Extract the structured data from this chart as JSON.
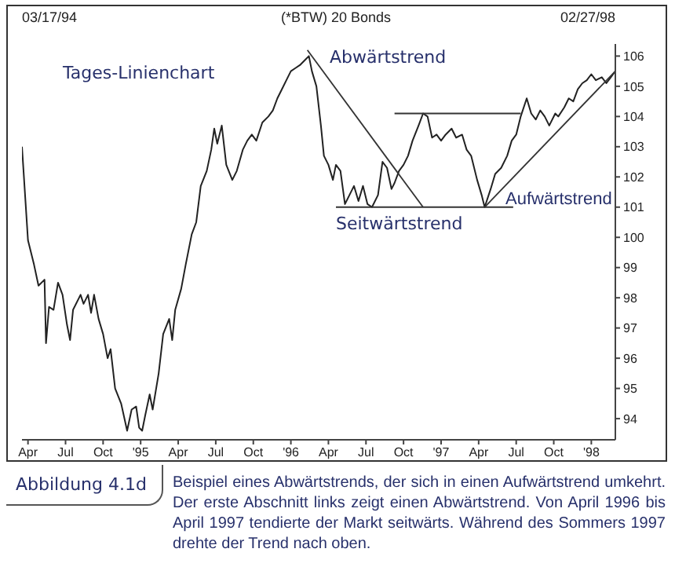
{
  "chart_data": {
    "type": "line",
    "title": "(*BTW) 20 Bonds",
    "annotations": [
      "03/17/94",
      "02/27/98",
      "Tages-Linienchart",
      "Abbildung 4.1d",
      "Beispiel eines Abwärtstrends, der sich in einen Aufwärtstrend umkehrt. Der erste Abschnitt links zeigt einen Abwärtstrend. Von April 1996 bis April 1997 tendierte der Markt seitwärts. Während des Sommers 1997 drehte der Trend nach oben.",
      "Abwärtstrend",
      "Seitwärtstrend",
      "Aufwärtstrend"
    ],
    "series": [
      {
        "color": "#222222",
        "x": [
          1994.21,
          1994.25,
          1994.29,
          1994.32,
          1994.36,
          1994.37,
          1994.39,
          1994.42,
          1994.45,
          1994.48,
          1994.51,
          1994.53,
          1994.55,
          1994.6,
          1994.62,
          1994.65,
          1994.67,
          1994.69,
          1994.72,
          1994.75,
          1994.78,
          1994.8,
          1994.83,
          1994.87,
          1994.91,
          1994.94,
          1994.97,
          1994.99,
          1995.01,
          1995.03,
          1995.06,
          1995.08,
          1995.12,
          1995.15,
          1995.19,
          1995.21,
          1995.23,
          1995.27,
          1995.3,
          1995.34,
          1995.37,
          1995.4,
          1995.44,
          1995.47,
          1995.49,
          1995.51,
          1995.54,
          1995.57,
          1995.61,
          1995.64,
          1995.68,
          1995.71,
          1995.74,
          1995.77,
          1995.81,
          1995.85,
          1995.88,
          1995.91,
          1995.94,
          1995.97,
          1996.0,
          1996.03,
          1996.06,
          1996.1,
          1996.12,
          1996.14,
          1996.17,
          1996.2,
          1996.22,
          1996.25,
          1996.28,
          1996.3,
          1996.33,
          1996.36,
          1996.39,
          1996.42,
          1996.45,
          1996.48,
          1996.51,
          1996.54,
          1996.58,
          1996.61,
          1996.64,
          1996.67,
          1996.69,
          1996.72,
          1996.75,
          1996.78,
          1996.81,
          1996.85,
          1996.88,
          1996.91,
          1996.94,
          1996.97,
          1997.0,
          1997.03,
          1997.07,
          1997.1,
          1997.14,
          1997.17,
          1997.2,
          1997.24,
          1997.27,
          1997.29,
          1997.33,
          1997.36,
          1997.4,
          1997.44,
          1997.47,
          1997.5,
          1997.53,
          1997.57,
          1997.6,
          1997.63,
          1997.66,
          1997.69,
          1997.72,
          1997.76,
          1997.78,
          1997.82,
          1997.85,
          1997.88,
          1997.91,
          1997.94,
          1997.97,
          1998.0,
          1998.03,
          1998.07,
          1998.1,
          1998.13,
          1998.16
        ],
        "values": [
          103.0,
          99.9,
          99.1,
          98.4,
          98.6,
          96.5,
          97.7,
          97.6,
          98.5,
          98.1,
          97.1,
          96.6,
          97.6,
          98.1,
          97.8,
          98.1,
          97.5,
          98.1,
          97.3,
          96.8,
          96.0,
          96.3,
          95.0,
          94.5,
          93.6,
          94.3,
          94.4,
          93.7,
          93.6,
          94.1,
          94.8,
          94.3,
          95.5,
          96.8,
          97.3,
          96.6,
          97.6,
          98.3,
          99.1,
          100.1,
          100.5,
          101.7,
          102.2,
          102.9,
          103.6,
          103.1,
          103.7,
          102.4,
          101.9,
          102.2,
          102.9,
          103.2,
          103.4,
          103.2,
          103.8,
          104.0,
          104.2,
          104.6,
          104.9,
          105.2,
          105.5,
          105.6,
          105.7,
          105.9,
          106.0,
          105.5,
          105.0,
          103.7,
          102.7,
          102.4,
          101.9,
          102.4,
          102.2,
          101.1,
          101.4,
          101.7,
          101.2,
          101.7,
          101.1,
          101.0,
          101.4,
          102.5,
          102.3,
          101.6,
          101.8,
          102.2,
          102.4,
          102.7,
          103.2,
          103.7,
          104.1,
          104.0,
          103.3,
          103.4,
          103.2,
          103.4,
          103.6,
          103.3,
          103.4,
          102.9,
          102.7,
          101.9,
          101.4,
          101.0,
          101.6,
          102.1,
          102.3,
          102.7,
          103.2,
          103.4,
          104.0,
          104.6,
          104.1,
          103.9,
          104.2,
          104.0,
          103.7,
          104.1,
          104.0,
          104.3,
          104.6,
          104.5,
          104.9,
          105.1,
          105.2,
          105.4,
          105.2,
          105.3,
          105.1,
          105.3,
          105.5
        ]
      },
      {
        "color": "#333333",
        "x": [
          1996.11,
          1996.88
        ],
        "values": [
          106.2,
          101.0
        ]
      },
      {
        "color": "#333333",
        "x": [
          1996.3,
          1997.48
        ],
        "values": [
          101.0,
          101.0
        ]
      },
      {
        "color": "#333333",
        "x": [
          1996.69,
          1997.53
        ],
        "values": [
          104.1,
          104.1
        ]
      },
      {
        "color": "#333333",
        "x": [
          1997.29,
          1998.16
        ],
        "values": [
          101.0,
          105.5
        ]
      }
    ],
    "xlim": [
      1994.21,
      1998.16
    ],
    "xticks": [
      {
        "value": 1994.25,
        "label": "Apr"
      },
      {
        "value": 1994.5,
        "label": "Jul"
      },
      {
        "value": 1994.75,
        "label": "Oct"
      },
      {
        "value": 1995.0,
        "label": "'95"
      },
      {
        "value": 1995.25,
        "label": "Apr"
      },
      {
        "value": 1995.5,
        "label": "Jul"
      },
      {
        "value": 1995.75,
        "label": "Oct"
      },
      {
        "value": 1996.0,
        "label": "'96"
      },
      {
        "value": 1996.25,
        "label": "Apr"
      },
      {
        "value": 1996.5,
        "label": "Jul"
      },
      {
        "value": 1996.75,
        "label": "Oct"
      },
      {
        "value": 1997.0,
        "label": "'97"
      },
      {
        "value": 1997.25,
        "label": "Apr"
      },
      {
        "value": 1997.5,
        "label": "Jul"
      },
      {
        "value": 1997.75,
        "label": "Oct"
      },
      {
        "value": 1998.0,
        "label": "'98"
      }
    ],
    "ylim": [
      93.3,
      106.4
    ],
    "yticks": [
      94,
      95,
      96,
      97,
      98,
      99,
      100,
      101,
      102,
      103,
      104,
      105,
      106
    ],
    "marker": "none",
    "grid": false
  }
}
